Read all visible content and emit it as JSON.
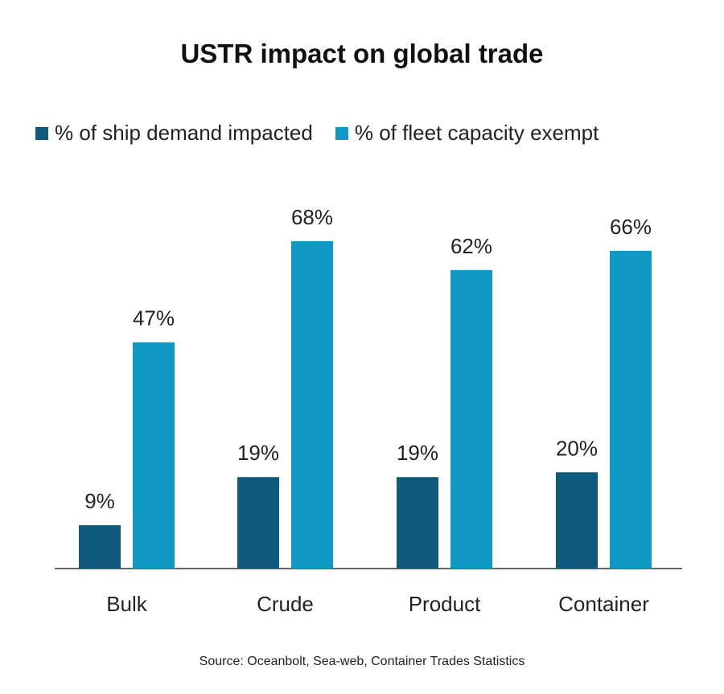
{
  "title": "USTR impact on global trade",
  "source": "Source: Oceanbolt, Sea-web, Container Trades Statistics",
  "colors": {
    "series1": "#0f5a7d",
    "series2": "#1199c6",
    "axis": "#333333"
  },
  "legend": [
    {
      "label": "% of ship demand impacted"
    },
    {
      "label": "% of fleet capacity exempt"
    }
  ],
  "chart_data": {
    "type": "bar",
    "title": "USTR impact on global trade",
    "categories": [
      "Bulk",
      "Crude",
      "Product",
      "Container"
    ],
    "series": [
      {
        "name": "% of ship demand impacted",
        "values": [
          9,
          19,
          19,
          20
        ],
        "labels": [
          "9%",
          "19%",
          "19%",
          "20%"
        ]
      },
      {
        "name": "% of fleet capacity exempt",
        "values": [
          47,
          68,
          62,
          66
        ],
        "labels": [
          "47%",
          "68%",
          "62%",
          "66%"
        ]
      }
    ],
    "xlabel": "",
    "ylabel": "",
    "ylim": [
      0,
      75
    ],
    "grid": false,
    "legend_position": "top"
  }
}
